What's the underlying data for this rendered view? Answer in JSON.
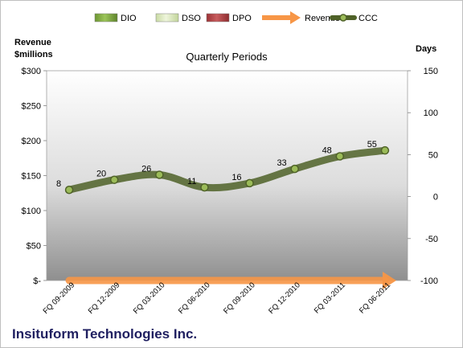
{
  "chart_data": {
    "type": "bar",
    "title": "Quarterly Periods",
    "company": "Insituform Technologies Inc.",
    "left_axis": {
      "label_line1": "Revenue",
      "label_line2": "$millions",
      "ylim": [
        0,
        300
      ],
      "ticks": [
        0,
        50,
        100,
        150,
        200,
        250,
        300
      ],
      "tick_labels": [
        "$-",
        "$50",
        "$100",
        "$150",
        "$200",
        "$250",
        "$300"
      ]
    },
    "right_axis": {
      "label": "Days",
      "ylim": [
        -100,
        150
      ],
      "ticks": [
        -100,
        -50,
        0,
        50,
        100,
        150
      ],
      "tick_labels": [
        "-100",
        "-50",
        "0",
        "50",
        "100",
        "150"
      ]
    },
    "categories": [
      "FQ 09-2009",
      "FQ 12-2009",
      "FQ 03-2010",
      "FQ 06-2010",
      "FQ 09-2010",
      "FQ 12-2010",
      "FQ 03-2011",
      "FQ 06-2011"
    ],
    "series": [
      {
        "name": "DIO",
        "type": "bar",
        "axis": "right",
        "color": "#7aa63a",
        "values": [
          0,
          0,
          0,
          0,
          0,
          0,
          0,
          0
        ]
      },
      {
        "name": "DSO",
        "type": "bar",
        "axis": "right",
        "color": "#d7e4bd",
        "values": [
          0,
          0,
          0,
          0,
          0,
          0,
          0,
          0
        ]
      },
      {
        "name": "DPO",
        "type": "bar",
        "axis": "right",
        "color": "#b7484a",
        "values": [
          0,
          0,
          0,
          0,
          0,
          0,
          0,
          0
        ]
      },
      {
        "name": "Revenue",
        "type": "line",
        "axis": "left",
        "color": "#f79646",
        "values": [
          0,
          0,
          0,
          0,
          0,
          0,
          0,
          0
        ]
      },
      {
        "name": "CCC",
        "type": "line",
        "axis": "right",
        "color": "#4f6228",
        "values": [
          8,
          20,
          26,
          11,
          16,
          33,
          48,
          55
        ]
      }
    ],
    "legend": [
      "DIO",
      "DSO",
      "DPO",
      "Revenue",
      "CCC"
    ],
    "legend_position": "top",
    "grid": false
  }
}
